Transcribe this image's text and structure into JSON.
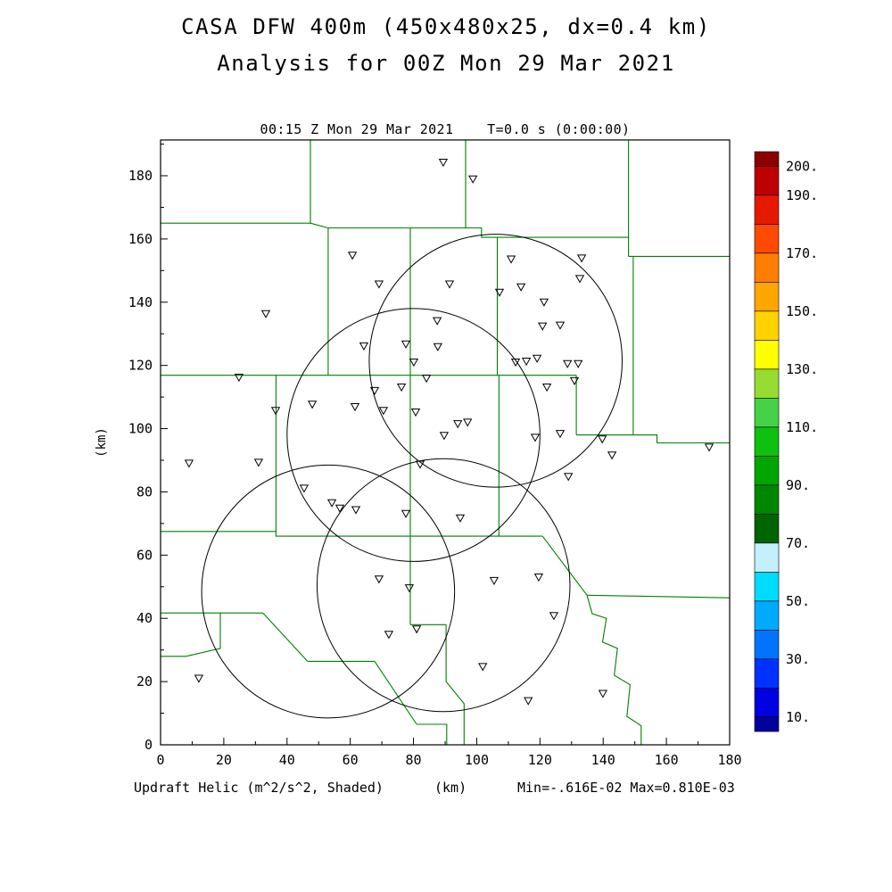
{
  "title": {
    "line1": "CASA DFW 400m (450x480x25, dx=0.4 km)",
    "line2": "Analysis for 00Z Mon 29 Mar 2021"
  },
  "plot": {
    "header": "00:15 Z Mon 29 Mar 2021    T=0.0 s (0:00:00)"
  },
  "footer": {
    "left": "Updraft Helic (m^2/s^2, Shaded)",
    "center": "(km)",
    "right": "Min=-.616E-02 Max=0.810E-03"
  },
  "chart_data": {
    "type": "scatter",
    "description": "CASA DFW radar analysis map: county boundaries, radar range rings, station markers, shaded updraft helicity colorbar",
    "xlabel": "(km)",
    "ylabel": "(km)",
    "xlim": [
      0,
      180
    ],
    "ylim": [
      0,
      191.3
    ],
    "x_axis": {
      "label": "(km)",
      "ticks": [
        0,
        20,
        40,
        60,
        80,
        100,
        120,
        140,
        160,
        180
      ]
    },
    "y_axis": {
      "label": "(km)",
      "ticks": [
        0,
        20,
        40,
        60,
        80,
        100,
        120,
        140,
        160,
        180
      ]
    },
    "min_label": "-.616E-02",
    "max_label": "0.810E-03",
    "colors": {
      "county": "#007F00",
      "ring": "#000000",
      "marker": "#000000",
      "frame": "#000000"
    },
    "radar_circles": [
      {
        "x": 106.0,
        "y": 121.5,
        "r": 40
      },
      {
        "x": 80.0,
        "y": 98.0,
        "r": 40
      },
      {
        "x": 53.0,
        "y": 48.5,
        "r": 40
      },
      {
        "x": 89.5,
        "y": 50.5,
        "r": 40
      }
    ],
    "station_markers": [
      [
        89.4,
        184.2
      ],
      [
        98.8,
        178.9
      ],
      [
        60.7,
        154.8
      ],
      [
        110.9,
        153.6
      ],
      [
        133.2,
        153.9
      ],
      [
        69.1,
        145.7
      ],
      [
        91.4,
        145.7
      ],
      [
        107.2,
        143.1
      ],
      [
        114.0,
        144.8
      ],
      [
        132.6,
        147.4
      ],
      [
        33.3,
        136.3
      ],
      [
        87.5,
        134.1
      ],
      [
        121.3,
        140.0
      ],
      [
        126.4,
        132.7
      ],
      [
        120.8,
        132.4
      ],
      [
        64.3,
        126.1
      ],
      [
        77.6,
        126.7
      ],
      [
        87.7,
        125.9
      ],
      [
        112.3,
        121.0
      ],
      [
        115.7,
        121.3
      ],
      [
        119.1,
        122.2
      ],
      [
        128.7,
        120.5
      ],
      [
        132.1,
        120.5
      ],
      [
        24.8,
        116.2
      ],
      [
        80.1,
        121.0
      ],
      [
        84.1,
        115.9
      ],
      [
        122.2,
        113.1
      ],
      [
        130.9,
        115.1
      ],
      [
        36.4,
        105.7
      ],
      [
        48.0,
        107.7
      ],
      [
        61.5,
        106.9
      ],
      [
        70.5,
        105.7
      ],
      [
        80.7,
        105.2
      ],
      [
        76.2,
        113.1
      ],
      [
        67.7,
        112.0
      ],
      [
        94.0,
        101.5
      ],
      [
        97.1,
        102.0
      ],
      [
        118.5,
        97.2
      ],
      [
        126.4,
        98.4
      ],
      [
        139.7,
        96.7
      ],
      [
        9.0,
        89.0
      ],
      [
        31.0,
        89.3
      ],
      [
        82.1,
        88.7
      ],
      [
        89.7,
        97.8
      ],
      [
        129.0,
        84.8
      ],
      [
        142.8,
        91.6
      ],
      [
        173.5,
        94.1
      ],
      [
        45.4,
        81.1
      ],
      [
        54.2,
        76.5
      ],
      [
        56.7,
        74.8
      ],
      [
        61.8,
        74.3
      ],
      [
        77.6,
        73.1
      ],
      [
        94.8,
        71.7
      ],
      [
        69.1,
        52.4
      ],
      [
        78.7,
        49.6
      ],
      [
        105.5,
        51.9
      ],
      [
        119.6,
        53.0
      ],
      [
        124.4,
        40.8
      ],
      [
        72.2,
        34.9
      ],
      [
        81.0,
        36.6
      ],
      [
        12.1,
        21.0
      ],
      [
        101.9,
        24.7
      ],
      [
        116.3,
        13.9
      ],
      [
        139.9,
        16.2
      ]
    ],
    "county_lines": [
      [
        [
          0,
          165
        ],
        [
          47.4,
          165
        ]
      ],
      [
        [
          47.4,
          191.3
        ],
        [
          47.4,
          165
        ]
      ],
      [
        [
          47.4,
          165
        ],
        [
          53,
          163.5
        ],
        [
          96.5,
          163.5
        ]
      ],
      [
        [
          96.5,
          191.3
        ],
        [
          96.5,
          163.5
        ]
      ],
      [
        [
          96.5,
          163.5
        ],
        [
          101.5,
          163.5
        ],
        [
          101.5,
          160.5
        ],
        [
          148,
          160.5
        ]
      ],
      [
        [
          148,
          191.3
        ],
        [
          148,
          154.5
        ]
      ],
      [
        [
          148,
          154.5
        ],
        [
          180,
          154.5
        ]
      ],
      [
        [
          0,
          116.9
        ],
        [
          131.5,
          116.9
        ]
      ],
      [
        [
          53,
          163.5
        ],
        [
          53,
          116.9
        ]
      ],
      [
        [
          79,
          163.5
        ],
        [
          79,
          116.9
        ]
      ],
      [
        [
          106.5,
          160.5
        ],
        [
          106.5,
          116.9
        ]
      ],
      [
        [
          131.5,
          116.9
        ],
        [
          131.5,
          98
        ]
      ],
      [
        [
          131.5,
          98
        ],
        [
          149.5,
          98
        ]
      ],
      [
        [
          149.5,
          154.5
        ],
        [
          149.5,
          98
        ]
      ],
      [
        [
          149.5,
          98
        ],
        [
          157,
          98
        ],
        [
          157,
          95.5
        ],
        [
          180,
          95.5
        ]
      ],
      [
        [
          0,
          67.5
        ],
        [
          36.5,
          67.5
        ],
        [
          36.5,
          66
        ],
        [
          120.8,
          66
        ]
      ],
      [
        [
          36.5,
          116.9
        ],
        [
          36.5,
          67.5
        ]
      ],
      [
        [
          79,
          116.9
        ],
        [
          79,
          66
        ]
      ],
      [
        [
          107,
          116.9
        ],
        [
          107,
          66
        ]
      ],
      [
        [
          120.8,
          66
        ],
        [
          134.9,
          47.3
        ]
      ],
      [
        [
          134.9,
          47.3
        ],
        [
          180,
          46.5
        ]
      ],
      [
        [
          134.9,
          47.3
        ],
        [
          136.5,
          41.5
        ],
        [
          141,
          40
        ],
        [
          139.8,
          32.5
        ],
        [
          144.5,
          30.5
        ],
        [
          143.5,
          22
        ],
        [
          148.5,
          19
        ],
        [
          147.5,
          9
        ],
        [
          152,
          6
        ],
        [
          152,
          0
        ]
      ],
      [
        [
          0,
          41.7
        ],
        [
          32.4,
          41.7
        ]
      ],
      [
        [
          18.9,
          41.7
        ],
        [
          18.9,
          30.5
        ],
        [
          8,
          28
        ],
        [
          0,
          28
        ]
      ],
      [
        [
          32.4,
          41.7
        ],
        [
          46.5,
          26.4
        ]
      ],
      [
        [
          46.5,
          26.4
        ],
        [
          67.7,
          26.4
        ]
      ],
      [
        [
          67.7,
          26.4
        ],
        [
          81,
          6.5
        ]
      ],
      [
        [
          81,
          6.5
        ],
        [
          90.5,
          6.5
        ],
        [
          90.5,
          0
        ]
      ],
      [
        [
          79,
          66
        ],
        [
          79,
          38
        ]
      ],
      [
        [
          79,
          38
        ],
        [
          90.3,
          38
        ]
      ],
      [
        [
          90.3,
          38
        ],
        [
          90.3,
          20
        ],
        [
          96,
          13
        ],
        [
          96,
          0
        ]
      ]
    ],
    "colorbar": {
      "domain": [
        5,
        205
      ],
      "labels": [
        {
          "value": 200,
          "text": "200."
        },
        {
          "value": 190,
          "text": "190."
        },
        {
          "value": 170,
          "text": "170."
        },
        {
          "value": 150,
          "text": "150."
        },
        {
          "value": 130,
          "text": "130."
        },
        {
          "value": 110,
          "text": "110."
        },
        {
          "value": 90,
          "text": "90."
        },
        {
          "value": 70,
          "text": "70."
        },
        {
          "value": 50,
          "text": "50."
        },
        {
          "value": 30,
          "text": "30."
        },
        {
          "value": 10,
          "text": "10."
        }
      ],
      "blocks": [
        {
          "lo": 5,
          "hi": 10,
          "color": "#00009B"
        },
        {
          "lo": 10,
          "hi": 20,
          "color": "#0000E1"
        },
        {
          "lo": 20,
          "hi": 30,
          "color": "#0032FF"
        },
        {
          "lo": 30,
          "hi": 40,
          "color": "#0073FF"
        },
        {
          "lo": 40,
          "hi": 50,
          "color": "#00AAFF"
        },
        {
          "lo": 50,
          "hi": 60,
          "color": "#00DCFF"
        },
        {
          "lo": 60,
          "hi": 70,
          "color": "#C3F0FA"
        },
        {
          "lo": 70,
          "hi": 80,
          "color": "#006400"
        },
        {
          "lo": 80,
          "hi": 90,
          "color": "#008700"
        },
        {
          "lo": 90,
          "hi": 100,
          "color": "#00A500"
        },
        {
          "lo": 100,
          "hi": 110,
          "color": "#0FC00F"
        },
        {
          "lo": 110,
          "hi": 120,
          "color": "#46D246"
        },
        {
          "lo": 120,
          "hi": 130,
          "color": "#96DC32"
        },
        {
          "lo": 130,
          "hi": 140,
          "color": "#FFFF00"
        },
        {
          "lo": 140,
          "hi": 150,
          "color": "#FFD200"
        },
        {
          "lo": 150,
          "hi": 160,
          "color": "#FFA500"
        },
        {
          "lo": 160,
          "hi": 170,
          "color": "#FF7D00"
        },
        {
          "lo": 170,
          "hi": 180,
          "color": "#FF4B00"
        },
        {
          "lo": 180,
          "hi": 190,
          "color": "#E61900"
        },
        {
          "lo": 190,
          "hi": 200,
          "color": "#BE0000"
        },
        {
          "lo": 200,
          "hi": 205,
          "color": "#8C0000"
        }
      ]
    }
  }
}
